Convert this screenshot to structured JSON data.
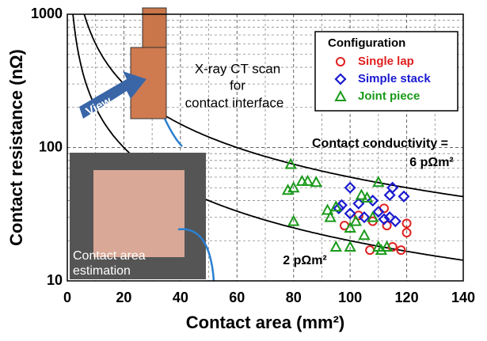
{
  "chart_data": {
    "type": "scatter",
    "log_y": true,
    "grid": true,
    "xlabel": "Contact area (mm²)",
    "ylabel": "Contact resistance (nΩ)",
    "xlim": [
      0,
      140
    ],
    "xticks": [
      0,
      20,
      40,
      60,
      80,
      100,
      120,
      140
    ],
    "ylim": [
      10,
      1000
    ],
    "yticks": [
      10,
      100,
      1000
    ],
    "legend_title": "Configuration",
    "legend_position": "upper right",
    "series": [
      {
        "name": "Single lap",
        "color": "#e02020",
        "marker": "circle",
        "x": [
          98,
          103,
          107,
          108,
          112,
          113,
          115,
          118,
          120,
          120
        ],
        "y": [
          26,
          31,
          17,
          28,
          35,
          26,
          18,
          17,
          27,
          23
        ]
      },
      {
        "name": "Simple stack",
        "color": "#1a1ad0",
        "marker": "diamond",
        "x": [
          96,
          97,
          100,
          100,
          103,
          105,
          108,
          110,
          112,
          114,
          114,
          115,
          116,
          119
        ],
        "y": [
          35,
          37,
          50,
          32,
          38,
          30,
          40,
          33,
          29,
          44,
          30,
          50,
          28,
          43
        ]
      },
      {
        "name": "Joint piece",
        "color": "#1a9a1a",
        "marker": "triangle",
        "x": [
          78,
          79,
          80,
          80,
          83,
          85,
          88,
          92,
          93,
          95,
          95,
          100,
          100,
          102,
          104,
          105,
          106,
          108,
          110,
          110,
          111,
          113
        ],
        "y": [
          48,
          75,
          50,
          28,
          56,
          56,
          55,
          34,
          30,
          36,
          18,
          18,
          25,
          28,
          44,
          22,
          42,
          30,
          55,
          18,
          17,
          18
        ]
      }
    ],
    "curves": [
      {
        "conductivity": 6,
        "label": [
          "Contact conductivity =",
          "6 pΩm²"
        ]
      },
      {
        "conductivity": 2,
        "label": [
          "2 pΩm²"
        ]
      }
    ],
    "annotations": {
      "ct": [
        "X-ray CT scan",
        "for",
        "contact interface"
      ],
      "view": "View",
      "estimation": [
        "Contact area",
        "estimation"
      ]
    }
  }
}
